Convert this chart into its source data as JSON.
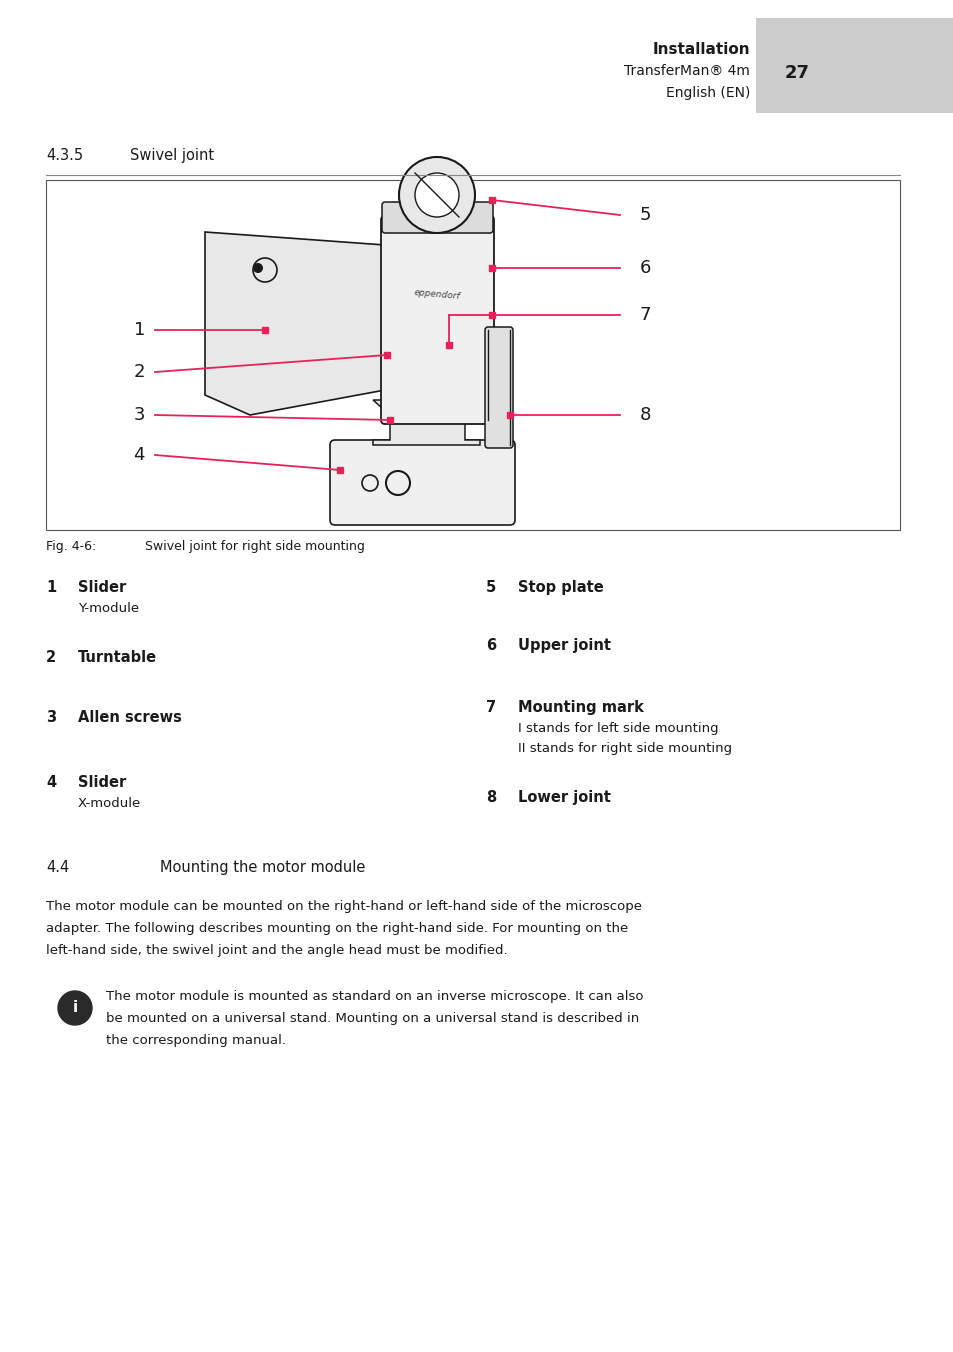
{
  "page_width": 9.54,
  "page_height": 13.52,
  "bg_color": "#ffffff",
  "header": {
    "title": "Installation",
    "subtitle": "TransferMan® 4m",
    "page_num": "27",
    "lang": "English (EN)",
    "tab_color": "#cccccc"
  },
  "section_435": {
    "number": "4.3.5",
    "title": "Swivel joint"
  },
  "items_left": [
    {
      "num": "1",
      "bold": "Slider",
      "sub": "Y-module"
    },
    {
      "num": "2",
      "bold": "Turntable",
      "sub": ""
    },
    {
      "num": "3",
      "bold": "Allen screws",
      "sub": ""
    },
    {
      "num": "4",
      "bold": "Slider",
      "sub": "X-module"
    }
  ],
  "items_right": [
    {
      "num": "5",
      "bold": "Stop plate",
      "sub": ""
    },
    {
      "num": "6",
      "bold": "Upper joint",
      "sub": ""
    },
    {
      "num": "7",
      "bold": "Mounting mark",
      "sub": "I stands for left side mounting\nII stands for right side mounting"
    },
    {
      "num": "8",
      "bold": "Lower joint",
      "sub": ""
    }
  ],
  "section_44": {
    "number": "4.4",
    "title": "Mounting the motor module"
  },
  "body_text": "The motor module can be mounted on the right-hand or left-hand side of the microscope adapter. The following describes mounting on the right-hand side. For mounting on the left-hand side, the swivel joint and the angle head must be modified.",
  "info_text": "The motor module is mounted as standard on an inverse microscope. It can also be mounted on a universal stand. Mounting on a universal stand is described in the corresponding manual.",
  "accent_color": "#e8215a",
  "line_color": "#1a1a1a",
  "text_color": "#1a1a1a"
}
